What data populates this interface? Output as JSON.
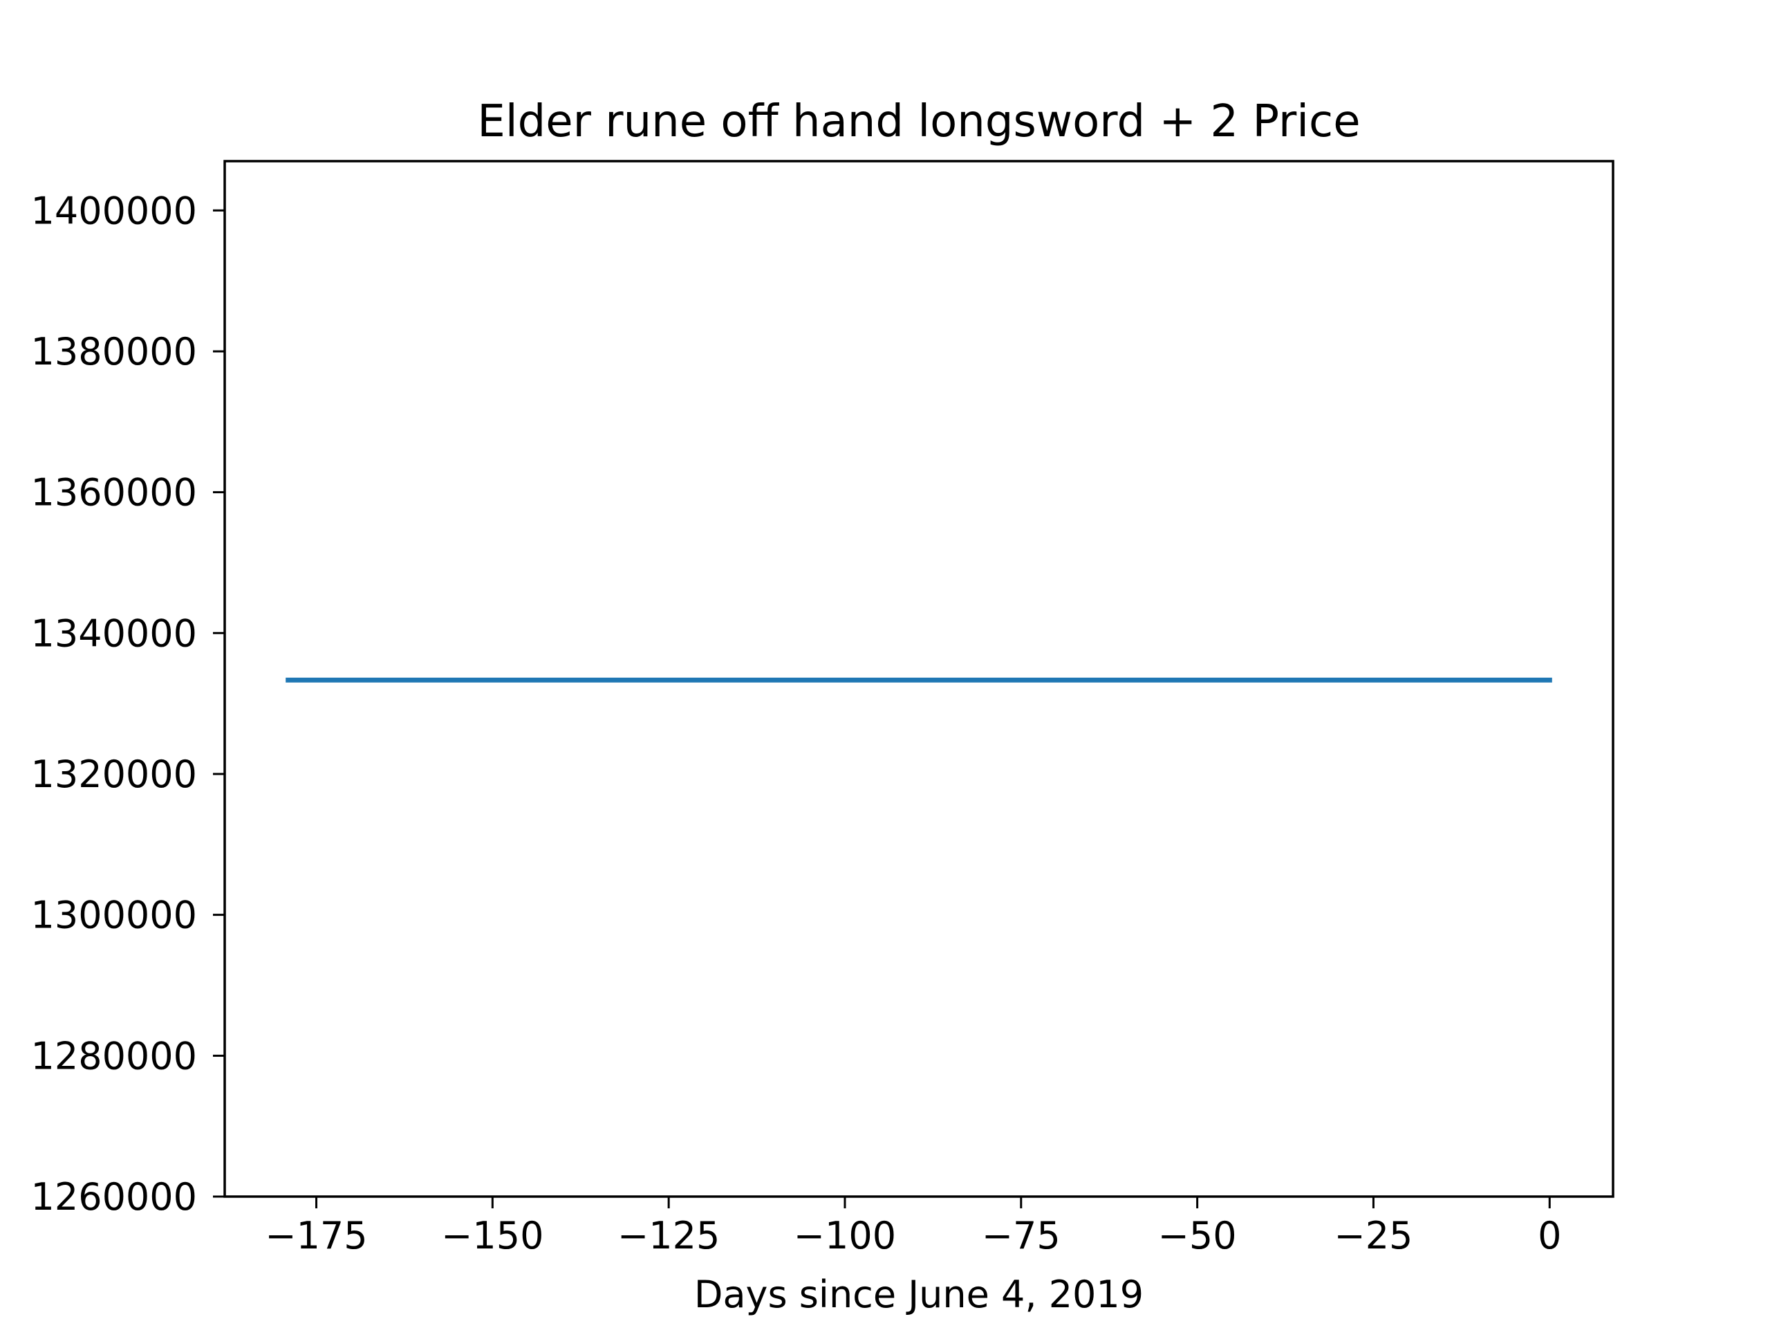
{
  "chart_data": {
    "type": "line",
    "title": "Elder rune off hand longsword + 2 Price",
    "xlabel": "Days since June 4, 2019",
    "ylabel": "",
    "xlim": [
      -188,
      9
    ],
    "ylim": [
      1260000,
      1407000
    ],
    "x_ticks": [
      -175,
      -150,
      -125,
      -100,
      -75,
      -50,
      -25,
      0
    ],
    "x_tick_labels": [
      "−175",
      "−150",
      "−125",
      "−100",
      "−75",
      "−50",
      "−25",
      "0"
    ],
    "y_ticks": [
      1260000,
      1280000,
      1300000,
      1320000,
      1340000,
      1360000,
      1380000,
      1400000
    ],
    "y_tick_labels": [
      "1260000",
      "1280000",
      "1300000",
      "1320000",
      "1340000",
      "1360000",
      "1380000",
      "1400000"
    ],
    "grid": false,
    "series": [
      {
        "color": "#1f77b4",
        "x": [
          -179,
          0
        ],
        "y": [
          1333333,
          1333333
        ]
      }
    ]
  }
}
